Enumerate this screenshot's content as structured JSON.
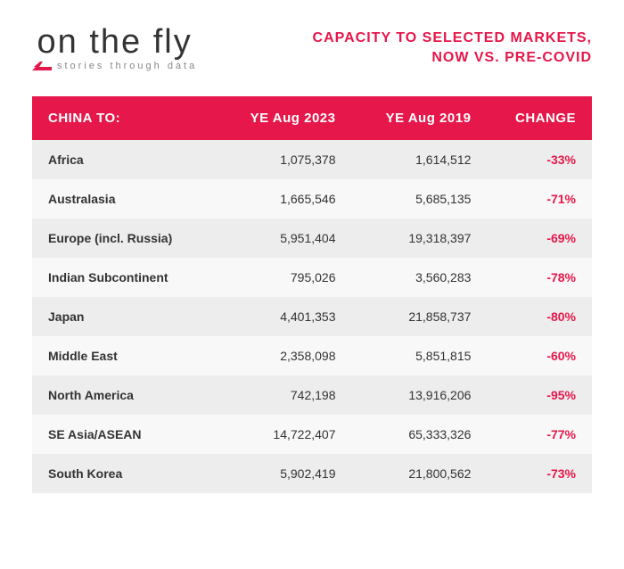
{
  "brand": {
    "logo_text": "on the fly",
    "tagline": "stories through data",
    "logo_color": "#333333",
    "tagline_color": "#888888",
    "icon_color": "#e6174a"
  },
  "title": {
    "line1": "CAPACITY TO SELECTED MARKETS,",
    "line2": "NOW VS. PRE-COVID",
    "color": "#e6174a"
  },
  "table": {
    "header_bg": "#e6174a",
    "header_fg": "#ffffff",
    "row_odd_bg": "#ededed",
    "row_even_bg": "#f8f8f8",
    "text_color": "#333333",
    "change_color": "#e6174a",
    "columns": [
      "CHINA TO:",
      "YE Aug 2023",
      "YE Aug 2019",
      "CHANGE"
    ],
    "rows": [
      {
        "region": "Africa",
        "y2023": "1,075,378",
        "y2019": "1,614,512",
        "change": "-33%"
      },
      {
        "region": "Australasia",
        "y2023": "1,665,546",
        "y2019": "5,685,135",
        "change": "-71%"
      },
      {
        "region": "Europe (incl. Russia)",
        "y2023": "5,951,404",
        "y2019": "19,318,397",
        "change": "-69%"
      },
      {
        "region": "Indian Subcontinent",
        "y2023": "795,026",
        "y2019": "3,560,283",
        "change": "-78%"
      },
      {
        "region": "Japan",
        "y2023": "4,401,353",
        "y2019": "21,858,737",
        "change": "-80%"
      },
      {
        "region": "Middle East",
        "y2023": "2,358,098",
        "y2019": "5,851,815",
        "change": "-60%"
      },
      {
        "region": "North America",
        "y2023": "742,198",
        "y2019": "13,916,206",
        "change": "-95%"
      },
      {
        "region": "SE Asia/ASEAN",
        "y2023": "14,722,407",
        "y2019": "65,333,326",
        "change": "-77%"
      },
      {
        "region": "South Korea",
        "y2023": "5,902,419",
        "y2019": "21,800,562",
        "change": "-73%"
      }
    ]
  }
}
